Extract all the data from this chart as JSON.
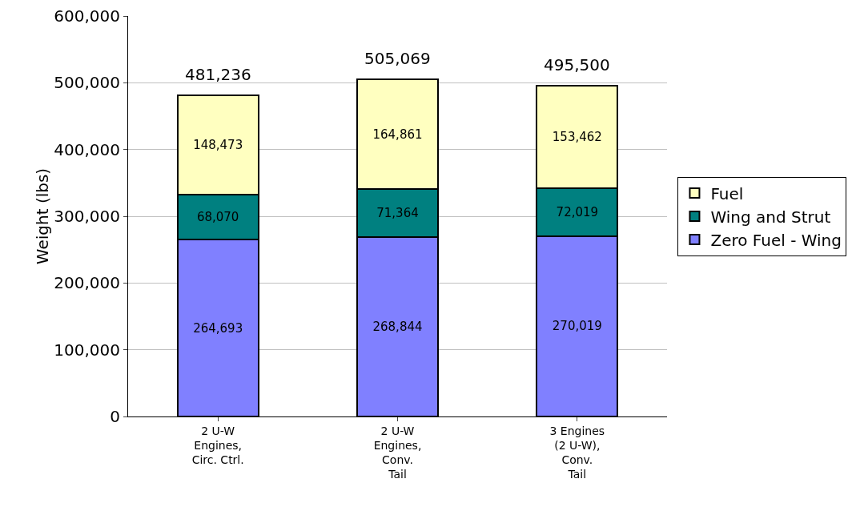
{
  "chart_data": {
    "type": "bar",
    "stacked": true,
    "ylabel": "Weight (lbs)",
    "categories": [
      "2 U-W\nEngines,\nCirc. Ctrl.",
      "2 U-W\nEngines,\nConv.\nTail",
      "3 Engines\n(2 U-W),\nConv.\nTail"
    ],
    "series": [
      {
        "name": "Zero Fuel - Wing",
        "color": "#8080ff",
        "values": [
          264693,
          268844,
          270019
        ],
        "value_labels": [
          "264,693",
          "268,844",
          "270,019"
        ]
      },
      {
        "name": "Wing and Strut",
        "color": "#008080",
        "values": [
          68070,
          71364,
          72019
        ],
        "value_labels": [
          "68,070",
          "71,364",
          "72,019"
        ]
      },
      {
        "name": "Fuel",
        "color": "#ffffc0",
        "values": [
          148473,
          164861,
          153462
        ],
        "value_labels": [
          "148,473",
          "164,861",
          "153,462"
        ]
      }
    ],
    "totals": [
      "481,236",
      "505,069",
      "495,500"
    ],
    "ylim": [
      0,
      600000
    ],
    "yticks": [
      0,
      {
        "value": 100000,
        "label": "100,000"
      },
      {
        "value": 200000,
        "label": "200,000"
      },
      {
        "value": 300000,
        "label": "300,000"
      },
      {
        "value": 400000,
        "label": "400,000"
      },
      {
        "value": 500000,
        "label": "500,000"
      },
      {
        "value": 600000,
        "label": "600,000"
      }
    ],
    "grid": "y",
    "legend": "right"
  }
}
